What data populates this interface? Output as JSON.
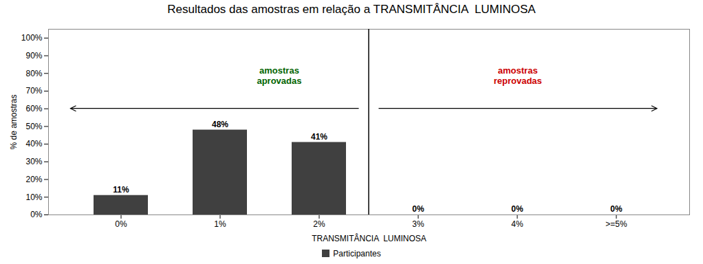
{
  "chart_data": {
    "type": "bar",
    "title": "Resultados das amostras em relação a TRANSMITÂNCIA  LUMINOSA",
    "categories": [
      "0%",
      "1%",
      "2%",
      "3%",
      "4%",
      ">=5%"
    ],
    "series": [
      {
        "name": "Participantes",
        "color": "#404040",
        "values": [
          11,
          48,
          41,
          0,
          0,
          0
        ],
        "value_labels": [
          "11%",
          "48%",
          "41%",
          "0%",
          "0%",
          "0%"
        ]
      }
    ],
    "xlabel": "TRANSMITÂNCIA  LUMINOSA",
    "ylabel": "% de amostras",
    "ylim": [
      0,
      105
    ],
    "yticks": [
      {
        "value": 0,
        "label": "0%"
      },
      {
        "value": 10,
        "label": "10%"
      },
      {
        "value": 20,
        "label": "20%"
      },
      {
        "value": 30,
        "label": "30%"
      },
      {
        "value": 40,
        "label": "40%"
      },
      {
        "value": 50,
        "label": "50%"
      },
      {
        "value": 60,
        "label": "60%"
      },
      {
        "value": 70,
        "label": "70%"
      },
      {
        "value": 80,
        "label": "80%"
      },
      {
        "value": 90,
        "label": "90%"
      },
      {
        "value": 100,
        "label": "100%"
      }
    ],
    "data_labels": true,
    "legend": "bottom",
    "annotations": [
      {
        "text": "amostras\naprovadas",
        "color": "#006400"
      },
      {
        "text": "amostras\nreprovadas",
        "color": "#cc0000"
      }
    ]
  }
}
